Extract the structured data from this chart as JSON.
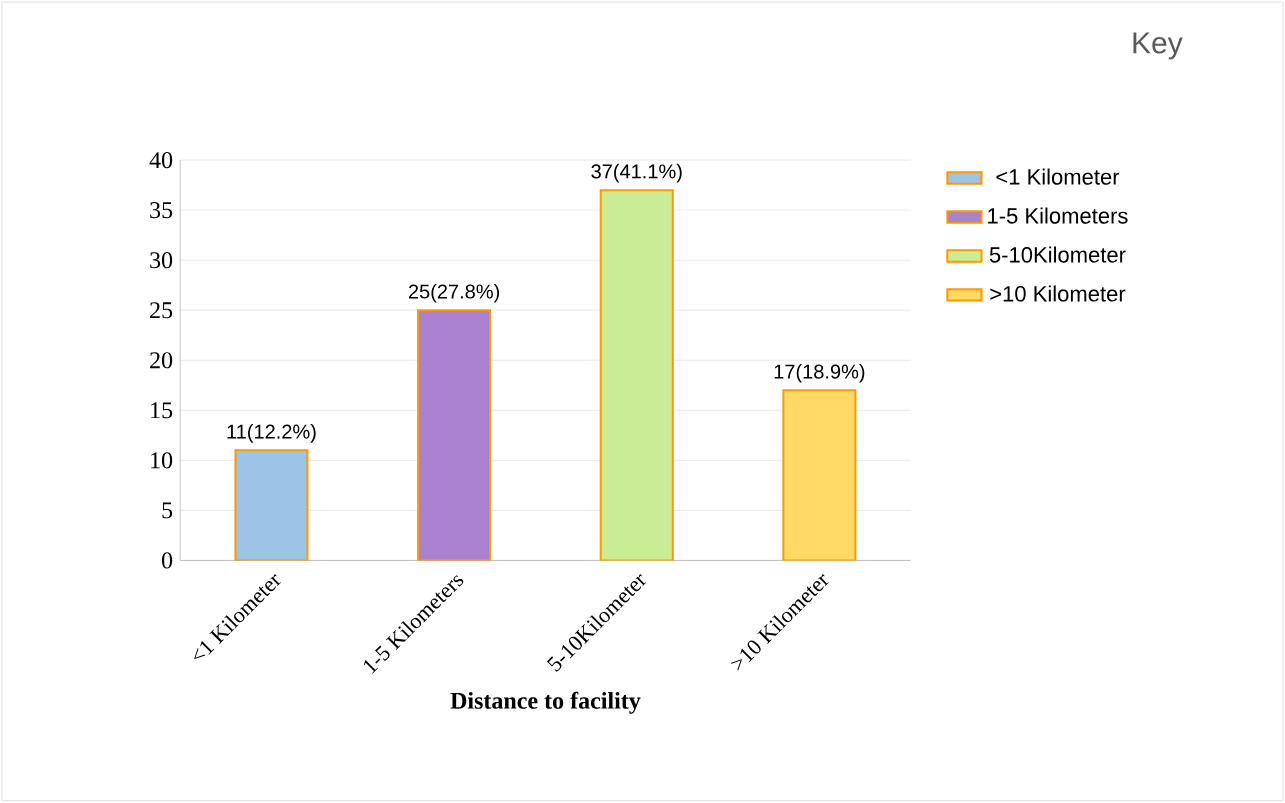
{
  "chart_data": {
    "type": "bar",
    "xlabel": "Distance to facility",
    "legend_title": "Key",
    "categories": [
      "<1 Kilometer",
      "1-5 Kilometers",
      "5-10Kilometer",
      ">10 Kilometer"
    ],
    "series": [
      {
        "name": "<1 Kilometer",
        "color": "#9dc3e6",
        "values": [
          11,
          null,
          null,
          null
        ],
        "value_labels": [
          "11(12.2%)",
          null,
          null,
          null
        ]
      },
      {
        "name": "1-5 Kilometers",
        "color": "#a981d0",
        "values": [
          null,
          25,
          null,
          null
        ],
        "value_labels": [
          null,
          "25(27.8%)",
          null,
          null
        ]
      },
      {
        "name": "5-10Kilometer",
        "color": "#c9ec94",
        "values": [
          null,
          null,
          37,
          null
        ],
        "value_labels": [
          null,
          null,
          "37(41.1%)",
          null
        ]
      },
      {
        "name": ">10 Kilometer",
        "color": "#ffd966",
        "values": [
          null,
          null,
          null,
          17
        ],
        "value_labels": [
          null,
          null,
          null,
          "17(18.9%)"
        ]
      }
    ],
    "ylim": [
      0,
      40
    ],
    "yticks": [
      0,
      5,
      10,
      15,
      20,
      25,
      30,
      35,
      40
    ],
    "grid": "y",
    "legend": "top right"
  }
}
